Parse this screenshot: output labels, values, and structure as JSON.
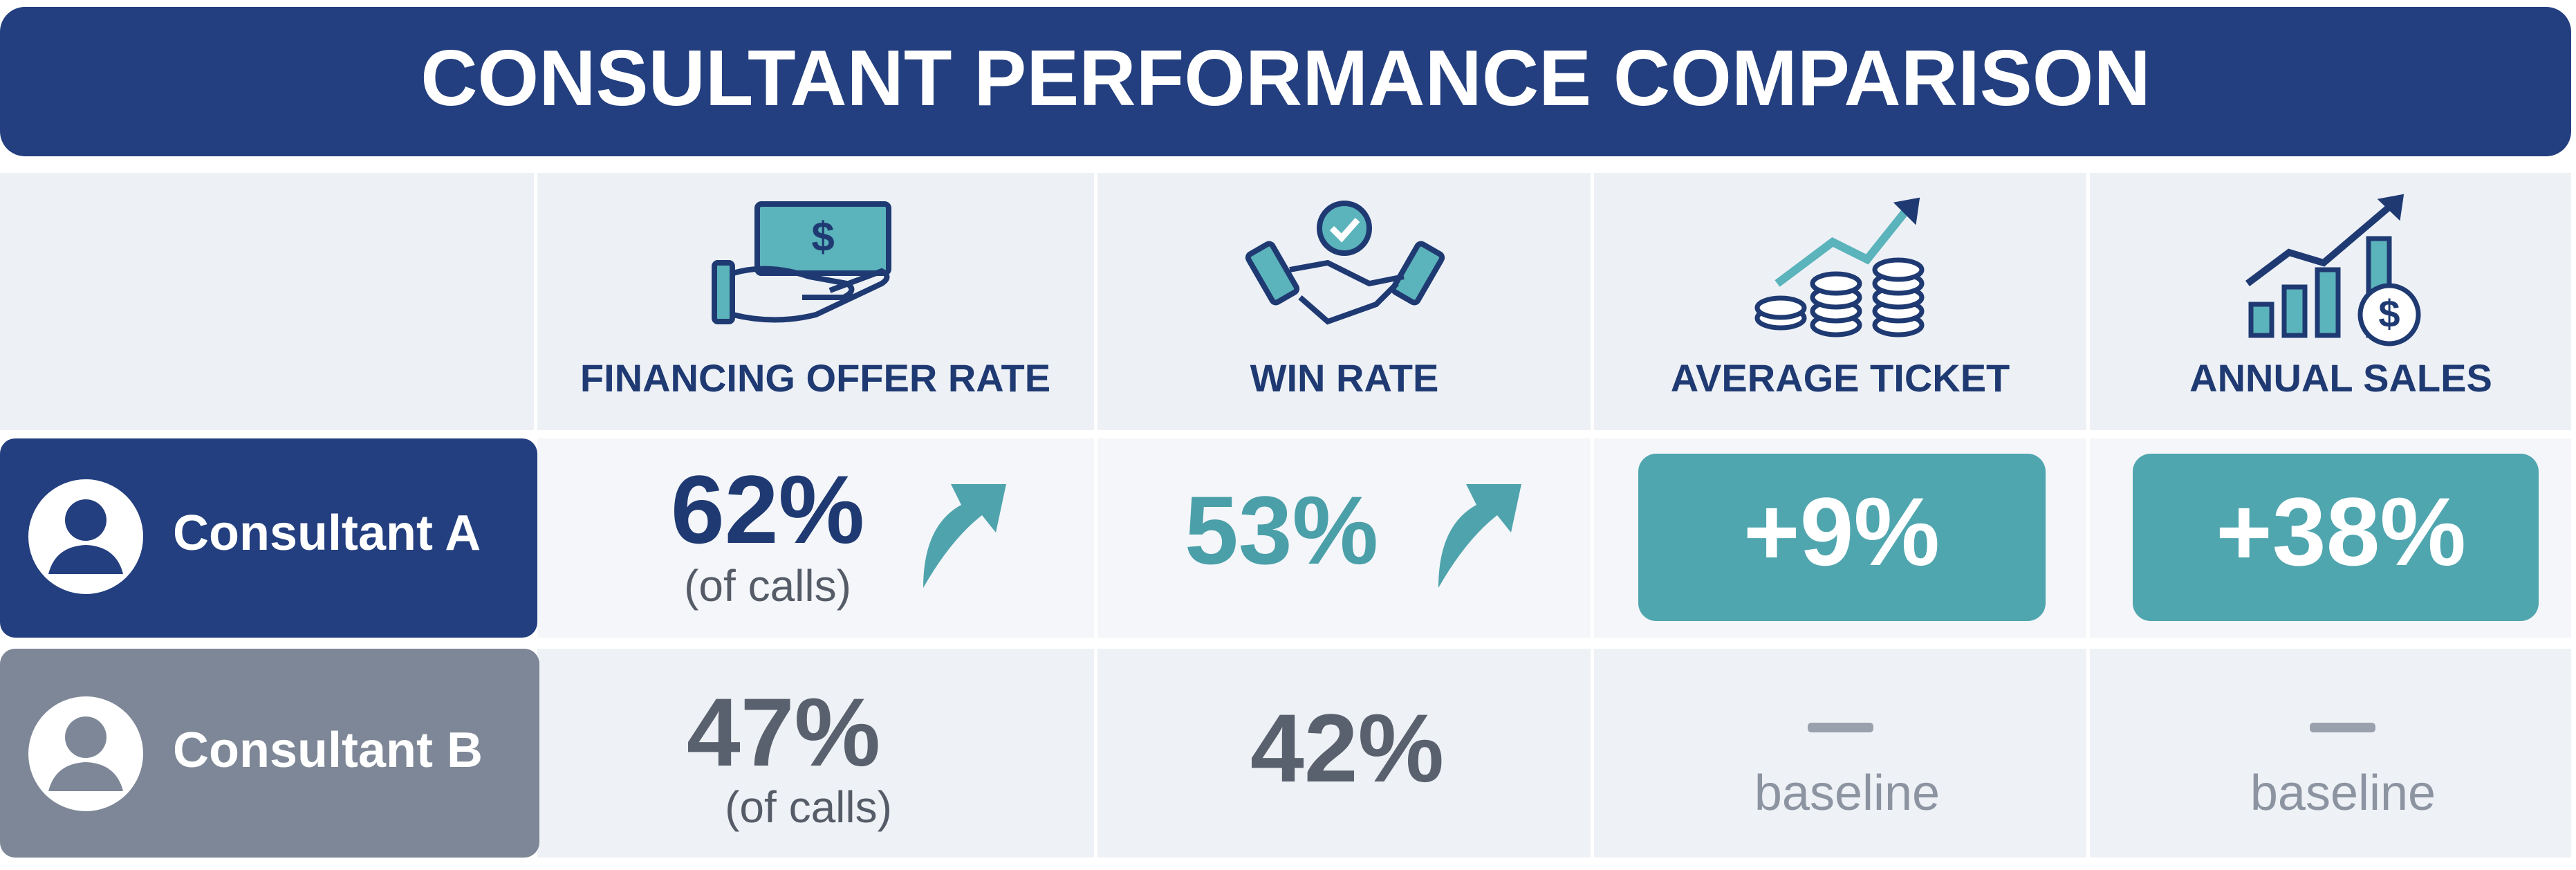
{
  "header": {
    "title": "CONSULTANT PERFORMANCE COMPARISON"
  },
  "table": {
    "columns": [
      "FINANCING OFFER RATE",
      "WIN RATE",
      "AVERAGE TICKET",
      "ANNUAL SALES"
    ],
    "rows": [
      {
        "label": "Consultant A",
        "cells": [
          {
            "value": "62%",
            "note": "(of calls)"
          },
          {
            "value": "53%"
          },
          {
            "value": "+9%"
          },
          {
            "value": "+38%"
          }
        ]
      },
      {
        "label": "Consultant B",
        "cells": [
          {
            "value": "47%",
            "note": "(of calls)"
          },
          {
            "value": "42%"
          },
          {
            "note": "baseline"
          },
          {
            "note": "baseline"
          }
        ]
      }
    ]
  }
}
